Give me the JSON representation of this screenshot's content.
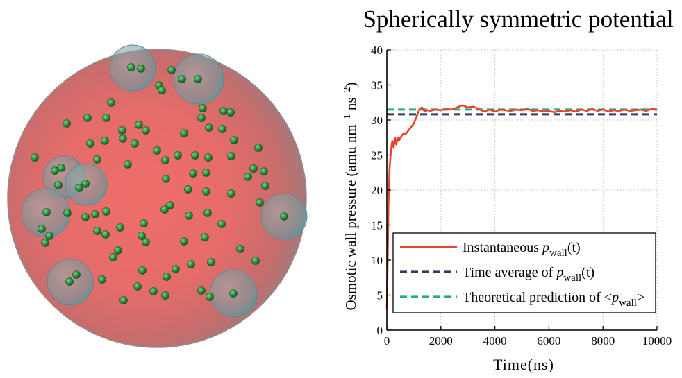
{
  "simulation_image": {
    "description_icon": "spherical-container-with-particles-icon"
  },
  "chart_data": {
    "type": "line",
    "title": "Spherically symmetric potential",
    "xlabel": "Time(ns)",
    "ylabel_main": "Osmotic wall pressure (amu nm",
    "ylabel_sup1": "−1",
    "ylabel_mid": " ns",
    "ylabel_sup2": "−2",
    "ylabel_end": ")",
    "xlim": [
      0,
      10000
    ],
    "ylim": [
      0,
      40
    ],
    "xticks": [
      0,
      2000,
      4000,
      6000,
      8000,
      10000
    ],
    "yticks": [
      0,
      5,
      10,
      15,
      20,
      25,
      30,
      35,
      40
    ],
    "grid": true,
    "legend_position": "bottom-right",
    "series": [
      {
        "name": "Instantaneous p_wall(t)",
        "legend_prefix": "Instantaneous ",
        "legend_italic": "p",
        "legend_sub": "wall",
        "legend_suffix": "(t)",
        "color": "#e8432a",
        "style": "solid",
        "x": [
          0,
          30,
          60,
          100,
          150,
          200,
          250,
          300,
          350,
          400,
          450,
          500,
          600,
          700,
          800,
          900,
          1000,
          1100,
          1200,
          1300,
          1400,
          1500,
          1600,
          1800,
          2000,
          2200,
          2400,
          2600,
          2800,
          3000,
          3200,
          3400,
          3600,
          3800,
          4000,
          4200,
          4400,
          4600,
          4800,
          5000,
          5200,
          5400,
          5600,
          5800,
          6000,
          6200,
          6400,
          6600,
          6800,
          7000,
          7200,
          7400,
          7600,
          7800,
          8000,
          8200,
          8400,
          8600,
          8800,
          9000,
          9200,
          9400,
          9600,
          9800,
          10000
        ],
        "y": [
          3,
          10,
          18,
          23,
          25.5,
          27,
          26,
          27.5,
          26.5,
          27.5,
          27,
          27.5,
          28,
          28,
          28.5,
          29,
          29.5,
          30.5,
          31.5,
          31.8,
          31.2,
          31.4,
          31.3,
          31.5,
          31.4,
          31.6,
          31.5,
          31.8,
          32.1,
          31.8,
          31.9,
          31.6,
          31.2,
          31.5,
          31.2,
          31.5,
          31.4,
          31.3,
          31.5,
          31.4,
          31.6,
          31.3,
          31.4,
          31.2,
          31.3,
          31.1,
          31.3,
          31.2,
          31.4,
          31.2,
          31.5,
          31.3,
          31.6,
          31.3,
          31.5,
          31.2,
          31.4,
          31.3,
          31.5,
          31.3,
          31.4,
          31.5,
          31.3,
          31.6,
          31.5
        ]
      },
      {
        "name": "Time average of p_wall(t)",
        "legend_prefix": "Time average of ",
        "legend_italic": "p",
        "legend_sub": "wall",
        "legend_suffix": "(t)",
        "color": "#2f3e5c",
        "style": "dashed",
        "x": [
          0,
          10000
        ],
        "y": [
          30.8,
          30.8
        ]
      },
      {
        "name": "Theoretical prediction of <p_wall>",
        "legend_prefix": "Theoretical prediction of <",
        "legend_italic": "p",
        "legend_sub": "wall",
        "legend_suffix": ">",
        "color": "#2aa88a",
        "style": "dashed",
        "x": [
          0,
          10000
        ],
        "y": [
          31.5,
          31.5
        ]
      }
    ]
  }
}
